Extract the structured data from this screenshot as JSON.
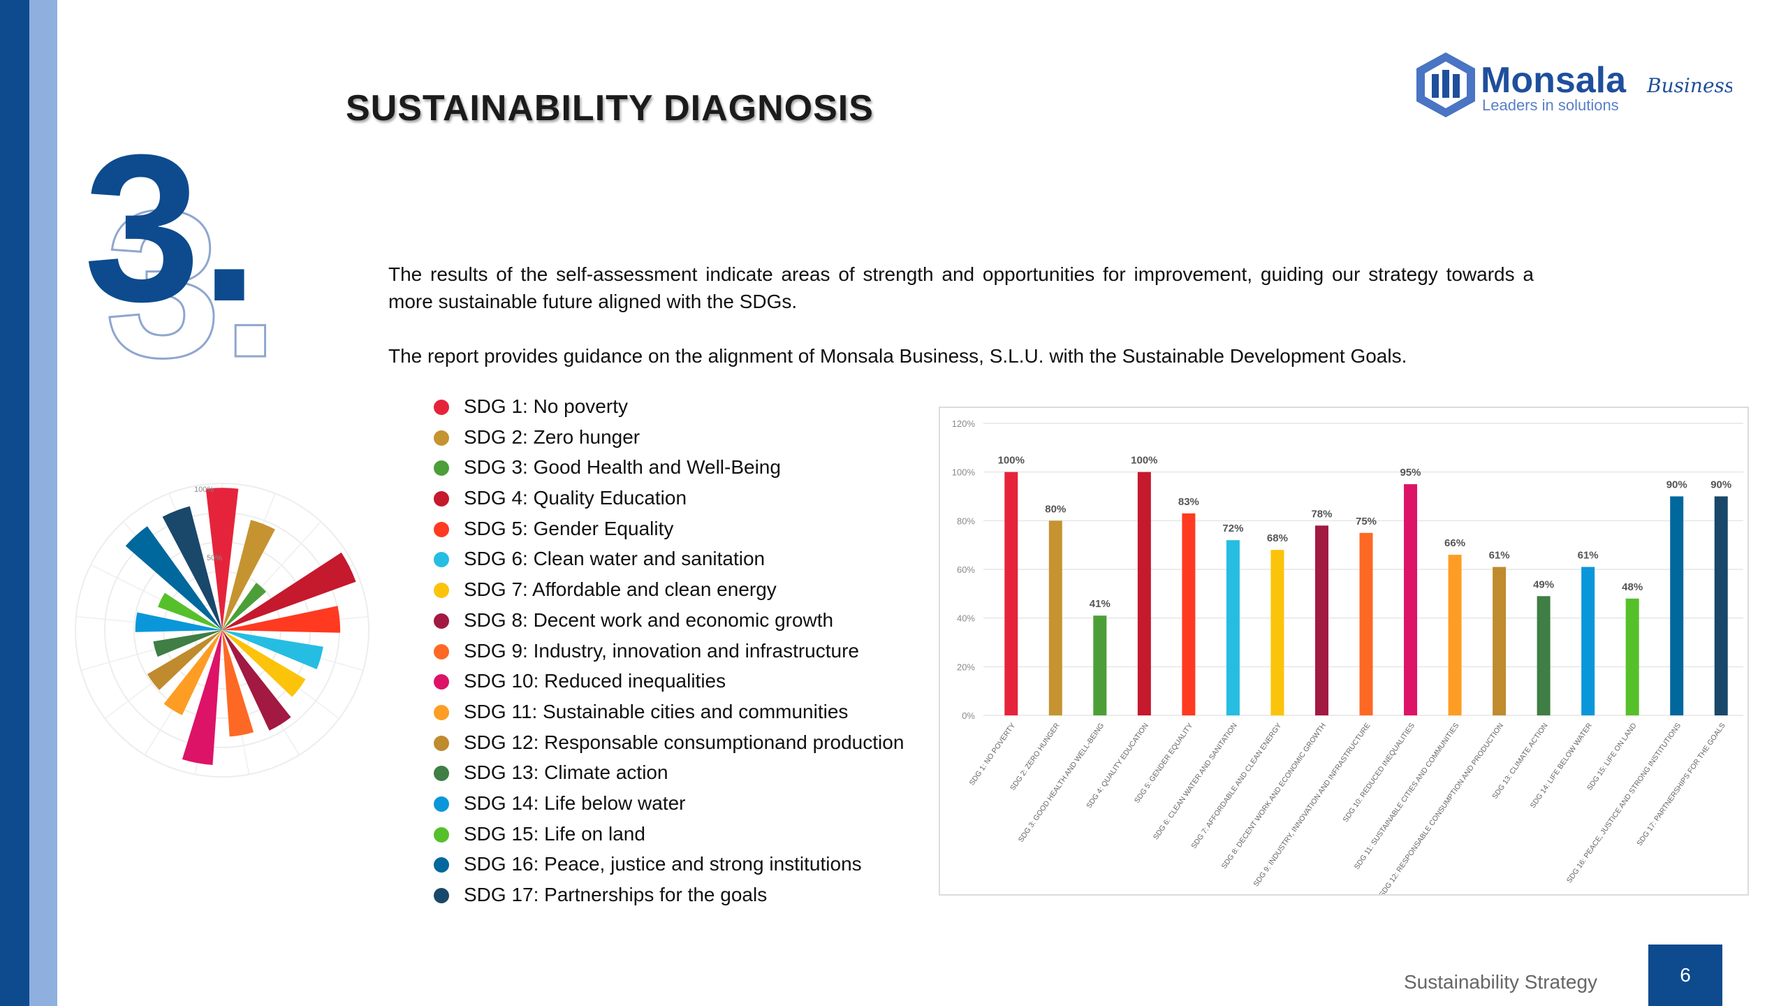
{
  "section": {
    "number": "3.",
    "title": "SUSTAINABILITY DIAGNOSIS"
  },
  "logo": {
    "brand": "Monsala",
    "script": "Business",
    "tagline": "Leaders in solutions",
    "color": "#1f4f9c"
  },
  "intro": {
    "paragraph1": "The results of the self-assessment indicate areas of strength and opportunities for improvement, guiding our strategy towards a more sustainable future aligned with the SDGs.",
    "paragraph2": "The report provides guidance on the alignment of Monsala Business, S.L.U. with the Sustainable Development Goals."
  },
  "legend": [
    {
      "label": "SDG 1: No poverty",
      "color": "#e5243b"
    },
    {
      "label": "SDG 2: Zero hunger",
      "color": "#c69331"
    },
    {
      "label": "SDG 3: Good Health and Well-Being",
      "color": "#4c9f38"
    },
    {
      "label": "SDG 4: Quality Education",
      "color": "#c5192d"
    },
    {
      "label": "SDG 5: Gender Equality",
      "color": "#ff3a21"
    },
    {
      "label": "SDG 6: Clean water and sanitation",
      "color": "#26bde2"
    },
    {
      "label": "SDG 7: Affordable and clean energy",
      "color": "#fcc30b"
    },
    {
      "label": "SDG 8: Decent work and economic growth",
      "color": "#a21942"
    },
    {
      "label": "SDG 9: Industry, innovation and infrastructure",
      "color": "#fd6925"
    },
    {
      "label": "SDG 10: Reduced inequalities",
      "color": "#dd1367"
    },
    {
      "label": "SDG 11: Sustainable cities and communities",
      "color": "#fd9d24"
    },
    {
      "label": "SDG 12: Responsable consumptionand production",
      "color": "#bf8b2e"
    },
    {
      "label": "SDG 13: Climate action",
      "color": "#3f7e44"
    },
    {
      "label": "SDG 14: Life below water",
      "color": "#0a97d9"
    },
    {
      "label": "SDG 15: Life on land",
      "color": "#56c02b"
    },
    {
      "label": "SDG 16: Peace, justice and strong institutions",
      "color": "#00689d"
    },
    {
      "label": "SDG 17: Partnerships for the goals",
      "color": "#19486a"
    }
  ],
  "chart_data": [
    {
      "type": "bar",
      "title": "",
      "xlabel": "",
      "ylabel": "",
      "ylim": [
        0,
        120
      ],
      "yticks": [
        "0%",
        "20%",
        "40%",
        "60%",
        "80%",
        "100%",
        "120%"
      ],
      "grid": true,
      "categories": [
        "SDG 1: NO POVERTY",
        "SDG 2: ZERO HUNGER",
        "SDG 3: GOOD HEALTH AND WELL-BEING",
        "SDG 4: QUALITY EDUCATION",
        "SDG 5: GENDER EQUALITY",
        "SDG 6: CLEAN WATER AND SANITATION",
        "SDG 7: AFFORDABLE AND CLEAN ENERGY",
        "SDG 8: DECENT WORK AND ECONOMIC GROWTH",
        "SDG 9: INDUSTRY, INNOVATION AND INFRASTRUCTURE",
        "SDG 10: REDUCED INEQUALITIES",
        "SDG 11: SUSTAINABLE CITIES AND COMMUNITIES",
        "SDG 12: RESPONSABLE CONSUMPTION AND PRODUCTION",
        "SDG 13: CLIMATE ACTION",
        "SDG 14: LIFE BELOW WATER",
        "SDG 15: LIFE ON LAND",
        "SDG 16: PEACE, JUSTICE AND STRONG INSTITUTIONS",
        "SDG 17: PARTNERSHIPS FOR THE GOALS"
      ],
      "values": [
        100,
        80,
        41,
        100,
        83,
        72,
        68,
        78,
        75,
        95,
        66,
        61,
        49,
        61,
        48,
        90,
        90
      ],
      "data_labels": [
        "100%",
        "80%",
        "41%",
        "100%",
        "83%",
        "72%",
        "68%",
        "78%",
        "75%",
        "95%",
        "66%",
        "61%",
        "49%",
        "61%",
        "48%",
        "90%",
        "90%"
      ]
    },
    {
      "type": "polar-area",
      "title": "",
      "radial_max": 100,
      "radial_tick_labels": [
        "50%",
        "100%"
      ],
      "series_source": "same 17 SDG values as the bar chart",
      "values": [
        100,
        80,
        41,
        100,
        83,
        72,
        68,
        78,
        75,
        95,
        66,
        61,
        49,
        61,
        48,
        90,
        90
      ]
    }
  ],
  "footer": {
    "label": "Sustainability Strategy",
    "page_number": "6"
  }
}
